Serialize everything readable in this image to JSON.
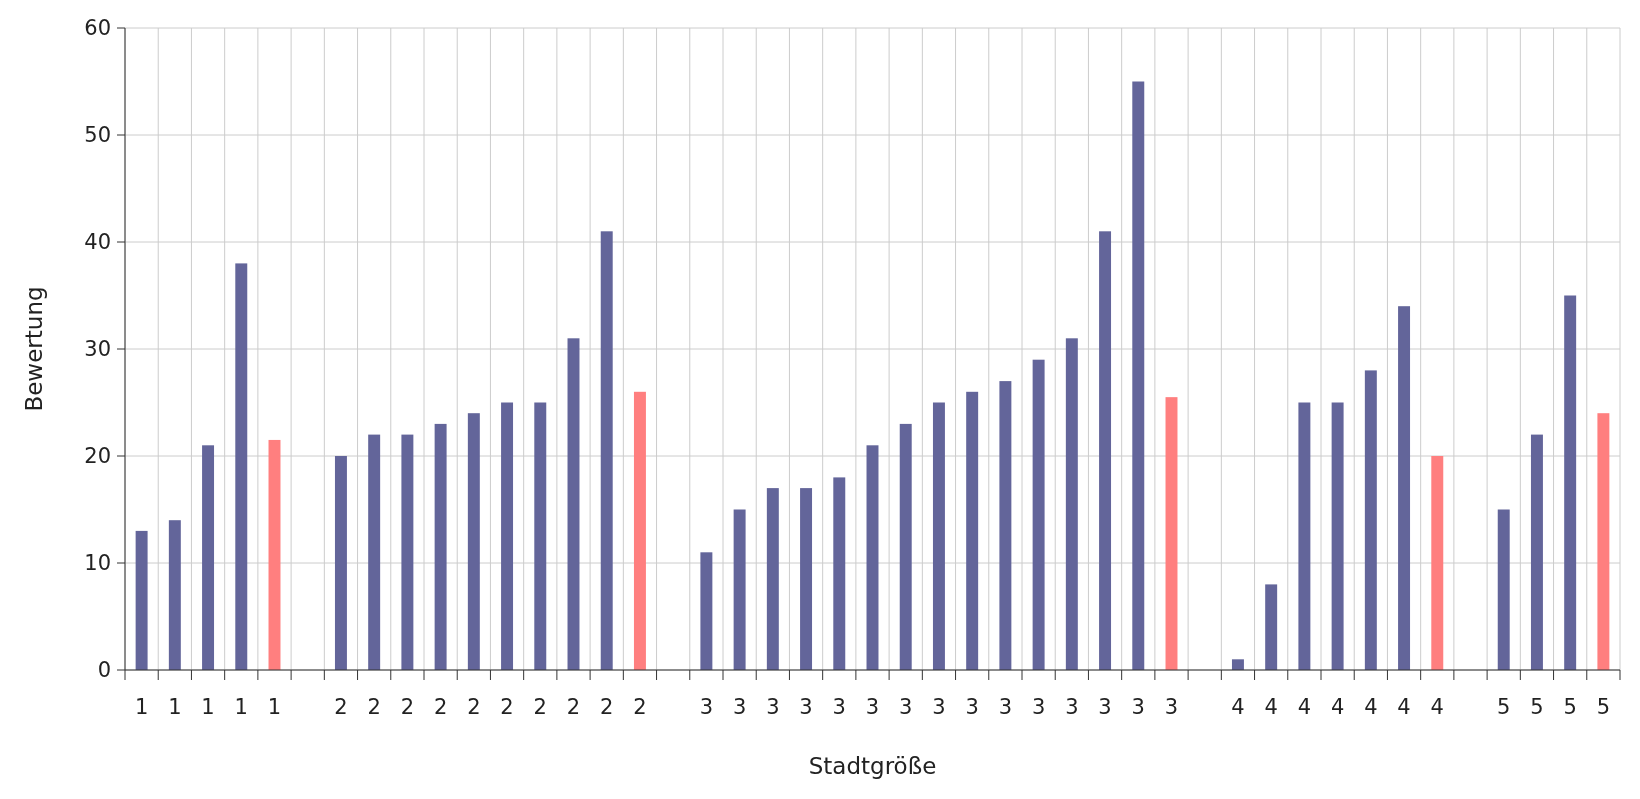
{
  "chart_data": {
    "type": "bar",
    "xlabel": "Stadtgröße",
    "ylabel": "Bewertung",
    "categories": [
      "1",
      "1",
      "1",
      "1",
      "1",
      null,
      "2",
      "2",
      "2",
      "2",
      "2",
      "2",
      "2",
      "2",
      "2",
      "2",
      null,
      "3",
      "3",
      "3",
      "3",
      "3",
      "3",
      "3",
      "3",
      "3",
      "3",
      "3",
      "3",
      "3",
      "3",
      "3",
      null,
      "4",
      "4",
      "4",
      "4",
      "4",
      "4",
      "4",
      null,
      "5",
      "5",
      "5",
      "5"
    ],
    "values": [
      13,
      14,
      21,
      38,
      21.5,
      null,
      20,
      22,
      22,
      23,
      24,
      25,
      25,
      31,
      41,
      26,
      null,
      11,
      15,
      17,
      17,
      18,
      21,
      23,
      25,
      26,
      27,
      29,
      31,
      41,
      55,
      25.5,
      null,
      1,
      8,
      25,
      25,
      28,
      34,
      20,
      null,
      15,
      22,
      35,
      24
    ],
    "colors": [
      "#63659a",
      "#63659a",
      "#63659a",
      "#63659a",
      "#ff7f7f",
      null,
      "#63659a",
      "#63659a",
      "#63659a",
      "#63659a",
      "#63659a",
      "#63659a",
      "#63659a",
      "#63659a",
      "#63659a",
      "#ff7f7f",
      null,
      "#63659a",
      "#63659a",
      "#63659a",
      "#63659a",
      "#63659a",
      "#63659a",
      "#63659a",
      "#63659a",
      "#63659a",
      "#63659a",
      "#63659a",
      "#63659a",
      "#63659a",
      "#63659a",
      "#ff7f7f",
      null,
      "#63659a",
      "#63659a",
      "#63659a",
      "#63659a",
      "#63659a",
      "#63659a",
      "#ff7f7f",
      null,
      "#63659a",
      "#63659a",
      "#63659a",
      "#ff7f7f"
    ],
    "ylim": [
      0,
      60
    ],
    "yticks": [
      0,
      10,
      20,
      30,
      40,
      50,
      60
    ],
    "grid": true
  }
}
